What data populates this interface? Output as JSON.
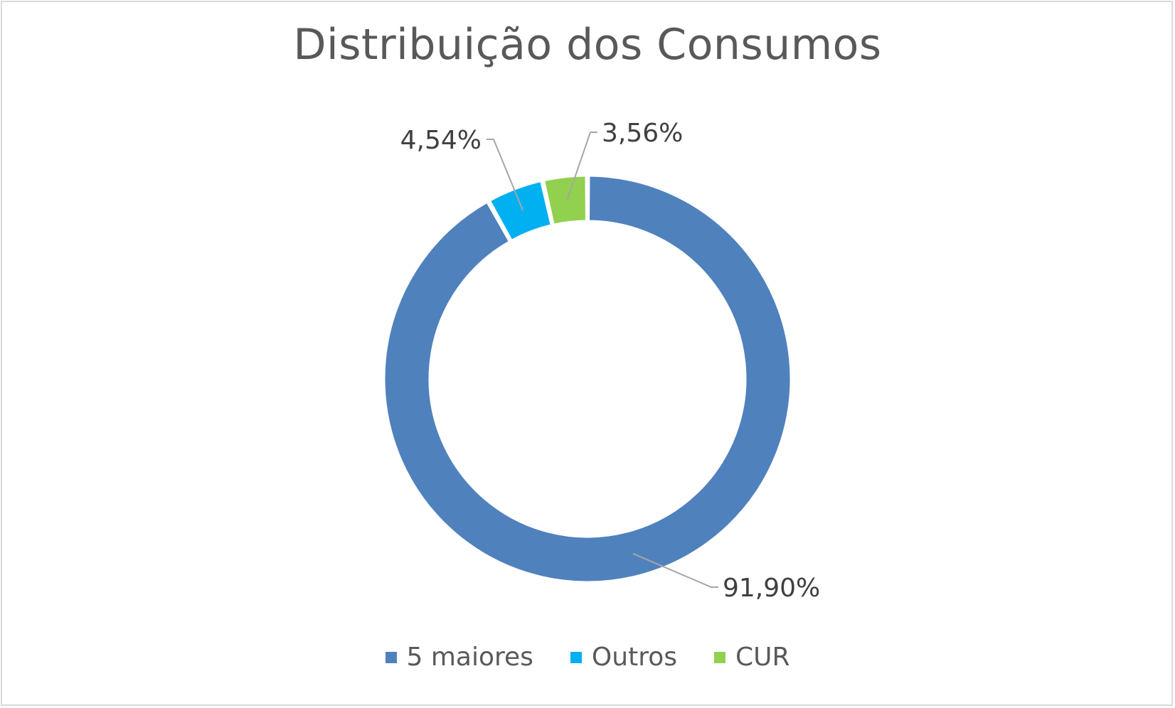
{
  "chart_data": {
    "type": "pie",
    "variant": "donut",
    "title": "Distribuição dos Consumos",
    "categories": [
      "5 maiores",
      "Outros",
      "CUR"
    ],
    "values": [
      91.9,
      4.54,
      3.56
    ],
    "value_labels": [
      "91,90%",
      "4,54%",
      "3,56%"
    ],
    "colors": [
      "#4f81bd",
      "#00b0f0",
      "#92d050"
    ],
    "legend": "bottom",
    "start_angle": "12 o'clock",
    "direction": "clockwise"
  }
}
